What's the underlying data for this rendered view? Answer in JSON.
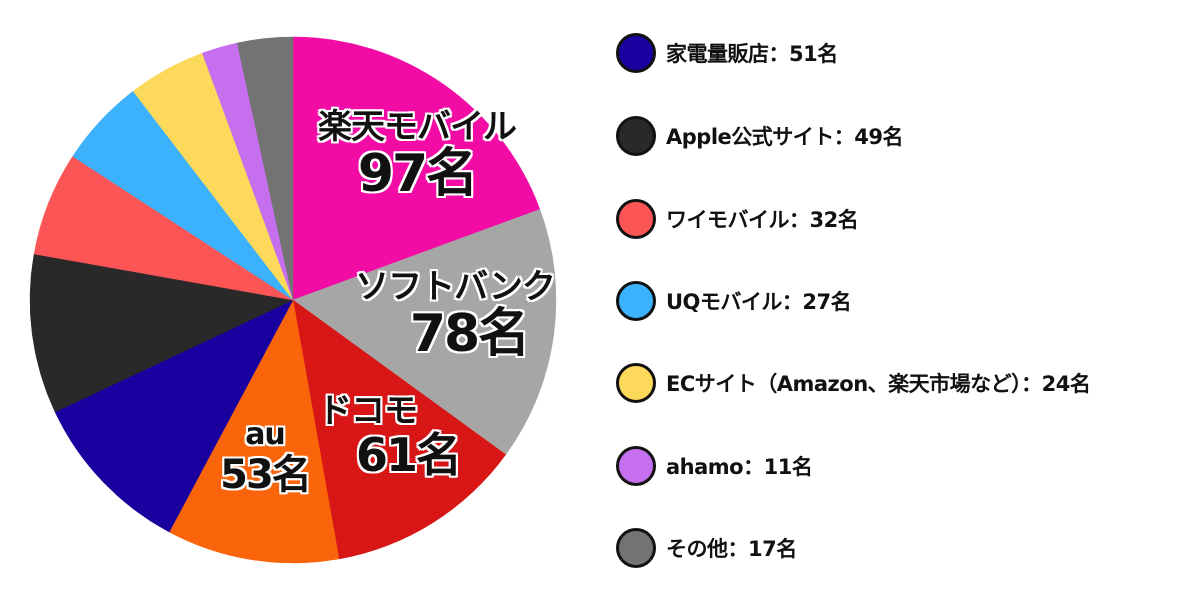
{
  "chart_data": {
    "type": "pie",
    "title": "",
    "unit": "名",
    "start_angle_deg": 0,
    "direction": "clockwise",
    "slices": [
      {
        "name": "楽天モバイル",
        "value": 97,
        "color": "#F20BA5",
        "label": "楽天モバイル",
        "value_label": "97名"
      },
      {
        "name": "ソフトバンク",
        "value": 78,
        "color": "#A6A6A6",
        "label": "ソフトバンク",
        "value_label": "78名"
      },
      {
        "name": "ドコモ",
        "value": 61,
        "color": "#D81616",
        "label": "ドコモ",
        "value_label": "61名"
      },
      {
        "name": "au",
        "value": 53,
        "color": "#FA640A",
        "label": "au",
        "value_label": "53名"
      },
      {
        "name": "家電量販店",
        "value": 51,
        "color": "#1A009E"
      },
      {
        "name": "Apple公式サイト",
        "value": 49,
        "color": "#2A2829"
      },
      {
        "name": "ワイモバイル",
        "value": 32,
        "color": "#FC5555"
      },
      {
        "name": "UQモバイル",
        "value": 27,
        "color": "#3BB2FB"
      },
      {
        "name": "ECサイト（Amazon、楽天市場など）",
        "value": 24,
        "color": "#FCD95A"
      },
      {
        "name": "ahamo",
        "value": 11,
        "color": "#C56FEE"
      },
      {
        "name": "その他",
        "value": 17,
        "color": "#737373"
      }
    ],
    "total": 500,
    "legend_position": "right"
  },
  "labels": {
    "rakuten": {
      "name": "楽天モバイル",
      "value": "97名"
    },
    "softbank": {
      "name": "ソフトバンク",
      "value": "78名"
    },
    "docomo": {
      "name": "ドコモ",
      "value": "61名"
    },
    "au": {
      "name": "au",
      "value": "53名"
    }
  },
  "legend": [
    {
      "text": "家電量販店：51名",
      "color": "#1A009E"
    },
    {
      "text": "Apple公式サイト：49名",
      "color": "#2A2829"
    },
    {
      "text": "ワイモバイル：32名",
      "color": "#FC5555"
    },
    {
      "text": "UQモバイル：27名",
      "color": "#3BB2FB"
    },
    {
      "text": "ECサイト（Amazon、楽天市場など）：24名",
      "color": "#FCD95A"
    },
    {
      "text": "ahamo：11名",
      "color": "#C56FEE"
    },
    {
      "text": "その他：17名",
      "color": "#737373"
    }
  ]
}
